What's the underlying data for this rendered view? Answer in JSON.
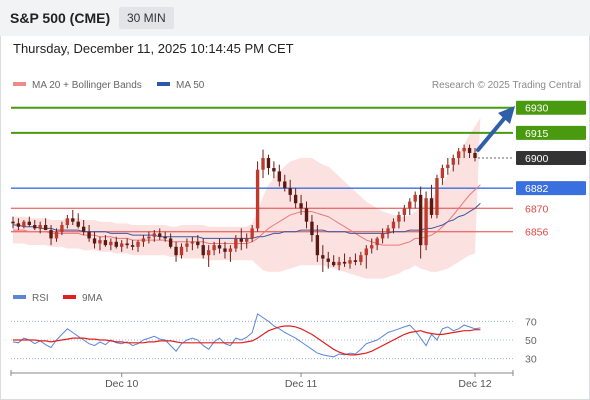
{
  "header": {
    "symbol": "S&P 500 (CME)",
    "timeframe": "30 MIN"
  },
  "timestamp": "Thursday, December 11, 2025 10:14:45 PM CET",
  "legend": [
    {
      "label": "MA 20 + Bollinger Bands",
      "color": "#f08a8a"
    },
    {
      "label": "MA 50",
      "color": "#2a5aa8"
    }
  ],
  "copyright": "Research © 2025 Trading Central",
  "rsi_legend": [
    {
      "label": "RSI",
      "color": "#5b86d6"
    },
    {
      "label": "9MA",
      "color": "#e02020"
    }
  ],
  "chart_data": {
    "type": "candlestick",
    "y_range": [
      6826,
      6937
    ],
    "levels": [
      {
        "label": "6930",
        "value": 6930,
        "color": "#4a9a10",
        "kind": "resistance"
      },
      {
        "label": "6915",
        "value": 6915,
        "color": "#4a9a10",
        "kind": "resistance"
      },
      {
        "label": "6900",
        "value": 6900,
        "color": "#333333",
        "kind": "last"
      },
      {
        "label": "6882",
        "value": 6882,
        "color": "#3a6fe0",
        "kind": "pivot"
      },
      {
        "label": "6870",
        "value": 6870,
        "color": "#e04848",
        "kind": "support"
      },
      {
        "label": "6856",
        "value": 6856,
        "color": "#e04848",
        "kind": "support"
      }
    ],
    "x_ticks": [
      "Dec 10",
      "Dec 11",
      "Dec 12"
    ],
    "candles": [
      [
        6862,
        6865,
        6858,
        6861
      ],
      [
        6861,
        6864,
        6857,
        6859
      ],
      [
        6859,
        6863,
        6858,
        6862
      ],
      [
        6862,
        6865,
        6859,
        6860
      ],
      [
        6860,
        6863,
        6857,
        6858
      ],
      [
        6858,
        6862,
        6855,
        6860
      ],
      [
        6860,
        6864,
        6857,
        6857
      ],
      [
        6857,
        6860,
        6848,
        6852
      ],
      [
        6852,
        6858,
        6850,
        6856
      ],
      [
        6856,
        6862,
        6854,
        6860
      ],
      [
        6860,
        6866,
        6858,
        6864
      ],
      [
        6864,
        6869,
        6860,
        6862
      ],
      [
        6862,
        6867,
        6858,
        6859
      ],
      [
        6859,
        6863,
        6854,
        6856
      ],
      [
        6856,
        6860,
        6850,
        6852
      ],
      [
        6852,
        6856,
        6846,
        6849
      ],
      [
        6849,
        6853,
        6845,
        6851
      ],
      [
        6851,
        6854,
        6847,
        6848
      ],
      [
        6848,
        6852,
        6845,
        6850
      ],
      [
        6850,
        6853,
        6846,
        6847
      ],
      [
        6847,
        6851,
        6844,
        6849
      ],
      [
        6849,
        6852,
        6846,
        6848
      ],
      [
        6848,
        6851,
        6845,
        6847
      ],
      [
        6847,
        6851,
        6844,
        6850
      ],
      [
        6850,
        6854,
        6847,
        6852
      ],
      [
        6852,
        6856,
        6849,
        6853
      ],
      [
        6853,
        6857,
        6850,
        6855
      ],
      [
        6855,
        6858,
        6851,
        6853
      ],
      [
        6853,
        6856,
        6850,
        6852
      ],
      [
        6852,
        6855,
        6846,
        6847
      ],
      [
        6847,
        6850,
        6838,
        6842
      ],
      [
        6842,
        6849,
        6840,
        6847
      ],
      [
        6847,
        6852,
        6844,
        6849
      ],
      [
        6849,
        6853,
        6845,
        6850
      ],
      [
        6850,
        6854,
        6846,
        6848
      ],
      [
        6848,
        6852,
        6840,
        6842
      ],
      [
        6842,
        6848,
        6835,
        6845
      ],
      [
        6845,
        6850,
        6842,
        6848
      ],
      [
        6848,
        6852,
        6843,
        6846
      ],
      [
        6846,
        6850,
        6840,
        6844
      ],
      [
        6844,
        6848,
        6838,
        6846
      ],
      [
        6846,
        6854,
        6844,
        6852
      ],
      [
        6852,
        6858,
        6845,
        6850
      ],
      [
        6850,
        6855,
        6846,
        6852
      ],
      [
        6852,
        6860,
        6850,
        6858
      ],
      [
        6858,
        6898,
        6856,
        6893
      ],
      [
        6893,
        6905,
        6888,
        6900
      ],
      [
        6900,
        6902,
        6890,
        6894
      ],
      [
        6894,
        6898,
        6888,
        6892
      ],
      [
        6892,
        6896,
        6883,
        6886
      ],
      [
        6886,
        6890,
        6880,
        6882
      ],
      [
        6882,
        6887,
        6874,
        6878
      ],
      [
        6878,
        6882,
        6870,
        6873
      ],
      [
        6873,
        6878,
        6866,
        6870
      ],
      [
        6870,
        6874,
        6858,
        6862
      ],
      [
        6862,
        6866,
        6850,
        6854
      ],
      [
        6854,
        6860,
        6838,
        6842
      ],
      [
        6842,
        6848,
        6832,
        6840
      ],
      [
        6840,
        6844,
        6834,
        6838
      ],
      [
        6838,
        6842,
        6835,
        6836
      ],
      [
        6836,
        6841,
        6833,
        6838
      ],
      [
        6838,
        6843,
        6835,
        6837
      ],
      [
        6837,
        6841,
        6834,
        6839
      ],
      [
        6839,
        6843,
        6836,
        6838
      ],
      [
        6838,
        6844,
        6836,
        6842
      ],
      [
        6842,
        6848,
        6834,
        6846
      ],
      [
        6846,
        6852,
        6843,
        6848
      ],
      [
        6848,
        6853,
        6845,
        6852
      ],
      [
        6852,
        6858,
        6849,
        6855
      ],
      [
        6855,
        6860,
        6852,
        6858
      ],
      [
        6858,
        6864,
        6855,
        6862
      ],
      [
        6862,
        6868,
        6858,
        6866
      ],
      [
        6866,
        6872,
        6862,
        6870
      ],
      [
        6870,
        6876,
        6866,
        6874
      ],
      [
        6874,
        6880,
        6870,
        6878
      ],
      [
        6878,
        6883,
        6840,
        6848
      ],
      [
        6848,
        6880,
        6845,
        6876
      ],
      [
        6876,
        6884,
        6864,
        6866
      ],
      [
        6866,
        6890,
        6864,
        6888
      ],
      [
        6888,
        6896,
        6884,
        6894
      ],
      [
        6894,
        6900,
        6890,
        6896
      ],
      [
        6896,
        6902,
        6892,
        6900
      ],
      [
        6900,
        6906,
        6896,
        6904
      ],
      [
        6904,
        6908,
        6900,
        6906
      ],
      [
        6906,
        6908,
        6900,
        6903
      ],
      [
        6903,
        6906,
        6898,
        6900
      ]
    ],
    "ma20": [
      6857,
      6857,
      6857,
      6856,
      6856,
      6856,
      6856,
      6855,
      6855,
      6855,
      6855,
      6855,
      6855,
      6854,
      6854,
      6854,
      6853,
      6853,
      6853,
      6852,
      6852,
      6852,
      6851,
      6851,
      6851,
      6851,
      6851,
      6851,
      6851,
      6850,
      6850,
      6850,
      6850,
      6850,
      6850,
      6850,
      6849,
      6849,
      6849,
      6849,
      6849,
      6849,
      6849,
      6849,
      6850,
      6852,
      6855,
      6858,
      6860,
      6862,
      6864,
      6866,
      6867,
      6868,
      6868,
      6868,
      6867,
      6866,
      6865,
      6863,
      6861,
      6859,
      6857,
      6855,
      6853,
      6851,
      6850,
      6849,
      6848,
      6848,
      6848,
      6848,
      6849,
      6850,
      6852,
      6852,
      6853,
      6854,
      6856,
      6859,
      6862,
      6866,
      6870,
      6874,
      6878,
      6881,
      6884
    ],
    "ma50": [
      6860,
      6860,
      6859,
      6859,
      6859,
      6858,
      6858,
      6858,
      6857,
      6857,
      6857,
      6857,
      6857,
      6856,
      6856,
      6856,
      6856,
      6856,
      6855,
      6855,
      6855,
      6855,
      6854,
      6854,
      6854,
      6854,
      6854,
      6853,
      6853,
      6853,
      6853,
      6853,
      6853,
      6853,
      6853,
      6852,
      6852,
      6852,
      6852,
      6852,
      6852,
      6852,
      6852,
      6852,
      6852,
      6853,
      6853,
      6854,
      6855,
      6855,
      6856,
      6856,
      6856,
      6857,
      6857,
      6857,
      6857,
      6857,
      6856,
      6856,
      6856,
      6856,
      6855,
      6855,
      6855,
      6855,
      6855,
      6855,
      6855,
      6855,
      6856,
      6856,
      6856,
      6857,
      6857,
      6857,
      6858,
      6858,
      6859,
      6860,
      6862,
      6863,
      6865,
      6866,
      6868,
      6870,
      6873
    ],
    "bb_width": [
      8,
      8,
      8,
      8,
      8,
      8,
      8,
      8,
      8,
      8,
      9,
      9,
      9,
      9,
      9,
      9,
      9,
      9,
      9,
      9,
      9,
      9,
      9,
      9,
      9,
      9,
      9,
      9,
      9,
      9,
      9,
      10,
      10,
      10,
      10,
      10,
      10,
      10,
      10,
      10,
      10,
      10,
      10,
      10,
      11,
      16,
      22,
      26,
      28,
      30,
      31,
      32,
      32,
      32,
      32,
      32,
      31,
      30,
      30,
      29,
      28,
      27,
      26,
      25,
      24,
      23,
      22,
      21,
      20,
      19,
      18,
      17,
      16,
      16,
      16,
      18,
      20,
      22,
      24,
      26,
      28,
      30,
      32,
      34,
      36,
      38,
      40
    ],
    "rsi": {
      "ticks": [
        70,
        50,
        30
      ],
      "range": [
        20,
        80
      ],
      "rsi": [
        48,
        47,
        52,
        50,
        46,
        49,
        45,
        42,
        50,
        56,
        62,
        58,
        54,
        50,
        46,
        44,
        48,
        45,
        50,
        47,
        46,
        48,
        44,
        46,
        50,
        52,
        54,
        51,
        50,
        44,
        38,
        46,
        50,
        52,
        50,
        44,
        40,
        48,
        52,
        46,
        44,
        52,
        50,
        53,
        58,
        78,
        74,
        70,
        65,
        62,
        58,
        55,
        52,
        48,
        44,
        40,
        36,
        34,
        33,
        32,
        35,
        34,
        36,
        35,
        40,
        46,
        48,
        50,
        54,
        58,
        60,
        62,
        64,
        66,
        60,
        52,
        44,
        56,
        50,
        62,
        64,
        60,
        62,
        66,
        64,
        62,
        63
      ],
      "ma9": [
        50,
        50,
        50,
        50,
        50,
        49,
        49,
        48,
        49,
        50,
        51,
        52,
        52,
        52,
        51,
        51,
        50,
        50,
        49,
        48,
        48,
        47,
        47,
        47,
        47,
        48,
        48,
        49,
        49,
        49,
        48,
        47,
        47,
        47,
        47,
        47,
        47,
        47,
        47,
        47,
        47,
        47,
        47,
        48,
        49,
        52,
        56,
        60,
        62,
        64,
        65,
        65,
        64,
        62,
        59,
        56,
        52,
        48,
        44,
        40,
        37,
        35,
        34,
        34,
        35,
        36,
        38,
        41,
        44,
        47,
        50,
        53,
        56,
        58,
        59,
        60,
        58,
        57,
        56,
        56,
        57,
        58,
        59,
        60,
        60,
        61,
        61
      ]
    }
  }
}
